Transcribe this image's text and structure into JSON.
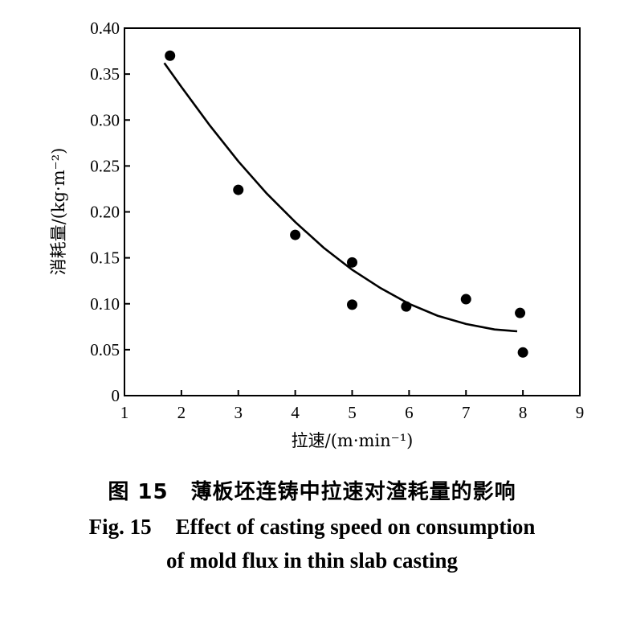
{
  "chart_data": {
    "type": "scatter",
    "title": "",
    "xlabel": "拉速/(m·min⁻¹)",
    "ylabel": "消耗量/(kg·m⁻²)",
    "xlim": [
      1,
      9
    ],
    "ylim": [
      0,
      0.4
    ],
    "x_ticks": [
      "1",
      "2",
      "3",
      "4",
      "5",
      "6",
      "7",
      "8",
      "9"
    ],
    "y_ticks": [
      "0",
      "0.05",
      "0.10",
      "0.15",
      "0.20",
      "0.25",
      "0.30",
      "0.35",
      "0.40"
    ],
    "grid": false,
    "series": [
      {
        "name": "measured",
        "points": [
          {
            "x": 1.8,
            "y": 0.37
          },
          {
            "x": 3.0,
            "y": 0.224
          },
          {
            "x": 4.0,
            "y": 0.175
          },
          {
            "x": 5.0,
            "y": 0.145
          },
          {
            "x": 5.0,
            "y": 0.099
          },
          {
            "x": 5.95,
            "y": 0.097
          },
          {
            "x": 7.0,
            "y": 0.105
          },
          {
            "x": 7.95,
            "y": 0.09
          },
          {
            "x": 8.0,
            "y": 0.047
          }
        ]
      },
      {
        "name": "fitted-curve",
        "points": [
          {
            "x": 1.7,
            "y": 0.362
          },
          {
            "x": 2.0,
            "y": 0.336
          },
          {
            "x": 2.5,
            "y": 0.294
          },
          {
            "x": 3.0,
            "y": 0.255
          },
          {
            "x": 3.5,
            "y": 0.22
          },
          {
            "x": 4.0,
            "y": 0.189
          },
          {
            "x": 4.5,
            "y": 0.161
          },
          {
            "x": 5.0,
            "y": 0.137
          },
          {
            "x": 5.5,
            "y": 0.117
          },
          {
            "x": 6.0,
            "y": 0.1
          },
          {
            "x": 6.5,
            "y": 0.087
          },
          {
            "x": 7.0,
            "y": 0.078
          },
          {
            "x": 7.5,
            "y": 0.072
          },
          {
            "x": 7.9,
            "y": 0.07
          }
        ]
      }
    ]
  },
  "caption": {
    "zh_num": "图 15",
    "zh_text": "薄板坯连铸中拉速对渣耗量的影响",
    "en_num": "Fig. 15",
    "en_line1": "Effect of casting speed on consumption",
    "en_line2": "of mold flux in thin slab casting"
  }
}
